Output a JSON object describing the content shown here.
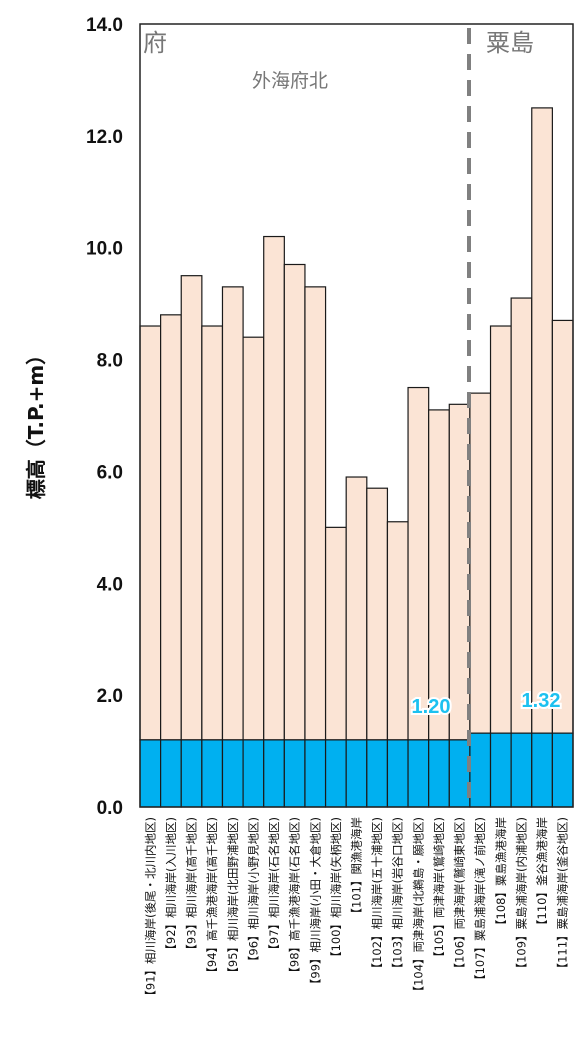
{
  "chart_data": {
    "type": "bar",
    "ylabel": "標高（T.P.+m）",
    "ylim": [
      0,
      14
    ],
    "yticks": [
      "0.0",
      "2.0",
      "4.0",
      "6.0",
      "8.0",
      "10.0",
      "12.0",
      "14.0"
    ],
    "grid": false,
    "categories": [
      "【91】相川海岸(後尾・北川内地区)",
      "【92】相川海岸(入川地区)",
      "【93】相川海岸(高千地区)",
      "【94】高千漁港海岸(高千地区)",
      "【95】相川海岸(北田野浦地区)",
      "【96】相川海岸(小野見地区)",
      "【97】相川海岸(石名地区)",
      "【98】高千漁港海岸(石名地区)",
      "【99】相川海岸(小田・大倉地区)",
      "【100】相川海岸(矢柄地区)",
      "【101】関漁港海岸",
      "【102】相川海岸(五十浦地区)",
      "【103】相川海岸(岩谷口地区)",
      "【104】両津海岸(北鵜島・願地区)",
      "【105】両津海岸(鷲崎地区)",
      "【106】両津海岸(鷲崎東地区)",
      "【107】粟島浦海岸(滝ノ前地区)",
      "【108】粟島漁港海岸",
      "【109】粟島浦海岸(内浦地区)",
      "【110】釜谷漁港海岸",
      "【111】粟島浦海岸(釜谷地区)"
    ],
    "series": [
      {
        "values": [
          1.2,
          1.2,
          1.2,
          1.2,
          1.2,
          1.2,
          1.2,
          1.2,
          1.2,
          1.2,
          1.2,
          1.2,
          1.2,
          1.2,
          1.2,
          1.2,
          1.32,
          1.32,
          1.32,
          1.32,
          1.32
        ],
        "color": "#00b0f0"
      },
      {
        "values": [
          8.6,
          8.8,
          9.5,
          8.6,
          9.3,
          8.4,
          10.2,
          9.7,
          9.3,
          5.0,
          5.9,
          5.7,
          5.1,
          7.5,
          7.1,
          7.2,
          7.4,
          8.6,
          9.1,
          12.5,
          8.7
        ],
        "color": "#fbe4d5"
      }
    ],
    "annotations": {
      "region_left": "府",
      "region_right": "粟島",
      "subregion": "外海府北",
      "value_label_1": "1.20",
      "value_label_2": "1.32"
    }
  }
}
